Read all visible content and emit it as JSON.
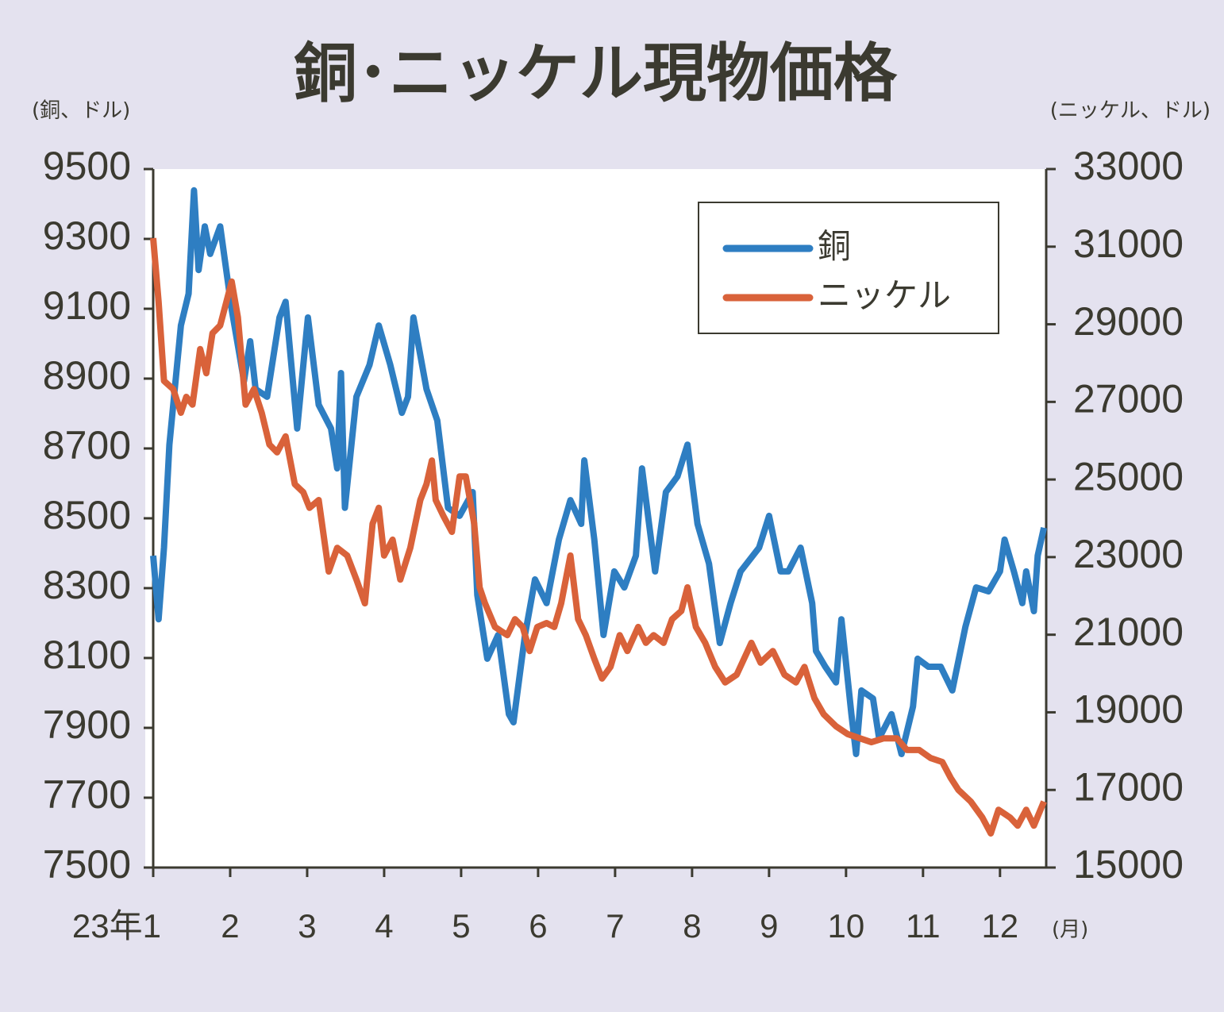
{
  "chart_data": {
    "type": "line",
    "title": "銅･ニッケル現物価格",
    "y_label": "(銅、ドル)",
    "y2_label": "(ニッケル、ドル)",
    "x_label": "(月)",
    "xlim": [
      1,
      12.6
    ],
    "xticks": [
      {
        "value": 1,
        "label": "23年1"
      },
      2,
      3,
      4,
      5,
      6,
      7,
      8,
      9,
      10,
      11,
      12
    ],
    "ylim": [
      7500,
      9500
    ],
    "yticks": [
      7500,
      7700,
      7900,
      8100,
      8300,
      8500,
      8700,
      8900,
      9100,
      9300,
      9500
    ],
    "y2lim": [
      15000,
      33000
    ],
    "y2ticks": [
      15000,
      17000,
      19000,
      21000,
      23000,
      25000,
      27000,
      29000,
      31000,
      33000
    ],
    "legend": "upper right",
    "series": [
      {
        "name": "銅",
        "color": "#2e7ec2",
        "x": [
          1.0,
          1.07,
          1.14,
          1.21,
          1.36,
          1.46,
          1.53,
          1.59,
          1.67,
          1.74,
          1.87,
          2.02,
          2.18,
          2.26,
          2.33,
          2.48,
          2.64,
          2.72,
          2.87,
          3.01,
          3.15,
          3.31,
          3.39,
          3.44,
          3.49,
          3.64,
          3.81,
          3.93,
          4.08,
          4.23,
          4.31,
          4.38,
          4.55,
          4.69,
          4.83,
          4.98,
          5.15,
          5.21,
          5.34,
          5.48,
          5.62,
          5.68,
          5.83,
          5.96,
          6.11,
          6.27,
          6.42,
          6.56,
          6.6,
          6.73,
          6.85,
          6.99,
          7.12,
          7.27,
          7.35,
          7.52,
          7.66,
          7.81,
          7.94,
          8.07,
          8.22,
          8.36,
          8.5,
          8.63,
          8.87,
          9.0,
          9.15,
          9.25,
          9.41,
          9.56,
          9.61,
          9.73,
          9.87,
          9.94,
          10.07,
          10.13,
          10.2,
          10.35,
          10.43,
          10.59,
          10.72,
          10.87,
          10.93,
          11.07,
          11.23,
          11.38,
          11.55,
          11.69,
          11.85,
          12.0,
          12.06,
          12.18,
          12.29,
          12.34,
          12.44,
          12.49,
          12.57
        ],
        "values": [
          8393,
          8211,
          8416,
          8711,
          9052,
          9143,
          9439,
          9211,
          9336,
          9257,
          9336,
          9098,
          8893,
          9007,
          8870,
          8848,
          9075,
          9120,
          8757,
          9075,
          8825,
          8757,
          8643,
          8916,
          8530,
          8848,
          8939,
          9052,
          8939,
          8802,
          8848,
          9075,
          8870,
          8780,
          8530,
          8507,
          8575,
          8280,
          8098,
          8166,
          7939,
          7916,
          8166,
          8325,
          8257,
          8439,
          8552,
          8484,
          8666,
          8439,
          8166,
          8348,
          8302,
          8393,
          8643,
          8348,
          8575,
          8620,
          8711,
          8484,
          8370,
          8143,
          8257,
          8348,
          8416,
          8507,
          8348,
          8348,
          8416,
          8257,
          8120,
          8075,
          8030,
          8211,
          7939,
          7825,
          8007,
          7984,
          7870,
          7939,
          7825,
          7961,
          8098,
          8075,
          8075,
          8007,
          8189,
          8302,
          8291,
          8348,
          8439,
          8348,
          8257,
          8348,
          8234,
          8393,
          8473
        ]
      },
      {
        "name": "ニッケル",
        "color": "#d9623a",
        "axis": "y2",
        "x": [
          1.0,
          1.07,
          1.14,
          1.26,
          1.36,
          1.43,
          1.51,
          1.61,
          1.69,
          1.77,
          1.87,
          2.02,
          2.1,
          2.2,
          2.31,
          2.41,
          2.51,
          2.61,
          2.72,
          2.84,
          2.95,
          3.03,
          3.15,
          3.28,
          3.39,
          3.52,
          3.64,
          3.75,
          3.85,
          3.93,
          4.0,
          4.11,
          4.21,
          4.34,
          4.47,
          4.55,
          4.62,
          4.67,
          4.77,
          4.88,
          4.98,
          5.06,
          5.17,
          5.24,
          5.31,
          5.44,
          5.6,
          5.7,
          5.8,
          5.89,
          5.99,
          6.11,
          6.21,
          6.3,
          6.42,
          6.52,
          6.62,
          6.73,
          6.83,
          6.94,
          7.06,
          7.16,
          7.3,
          7.4,
          7.5,
          7.63,
          7.74,
          7.86,
          7.94,
          8.05,
          8.17,
          8.3,
          8.43,
          8.58,
          8.77,
          8.89,
          9.05,
          9.2,
          9.35,
          9.46,
          9.59,
          9.71,
          9.87,
          10.02,
          10.18,
          10.33,
          10.49,
          10.66,
          10.79,
          10.95,
          11.1,
          11.25,
          11.36,
          11.46,
          11.62,
          11.77,
          11.88,
          11.98,
          12.13,
          12.23,
          12.34,
          12.44,
          12.57
        ],
        "values": [
          31220,
          29580,
          27540,
          27330,
          26720,
          27130,
          26930,
          28360,
          27740,
          28770,
          28970,
          30100,
          29180,
          26930,
          27330,
          26720,
          25900,
          25700,
          26110,
          24880,
          24670,
          24270,
          24470,
          22630,
          23240,
          23040,
          22420,
          21810,
          23860,
          24270,
          23040,
          23450,
          22420,
          23240,
          24470,
          24880,
          25490,
          24470,
          24060,
          23650,
          25080,
          25080,
          23860,
          22220,
          21810,
          21200,
          20990,
          21400,
          21200,
          20580,
          21200,
          21300,
          21200,
          21810,
          23040,
          21400,
          20990,
          20380,
          19870,
          20170,
          20990,
          20580,
          21200,
          20790,
          20990,
          20790,
          21400,
          21610,
          22220,
          21200,
          20790,
          20170,
          19770,
          19970,
          20790,
          20280,
          20580,
          19970,
          19770,
          20170,
          19360,
          18950,
          18640,
          18440,
          18330,
          18230,
          18330,
          18330,
          18030,
          18030,
          17820,
          17720,
          17310,
          17000,
          16700,
          16290,
          15880,
          16490,
          16290,
          16080,
          16490,
          16080,
          16700
        ]
      }
    ]
  }
}
